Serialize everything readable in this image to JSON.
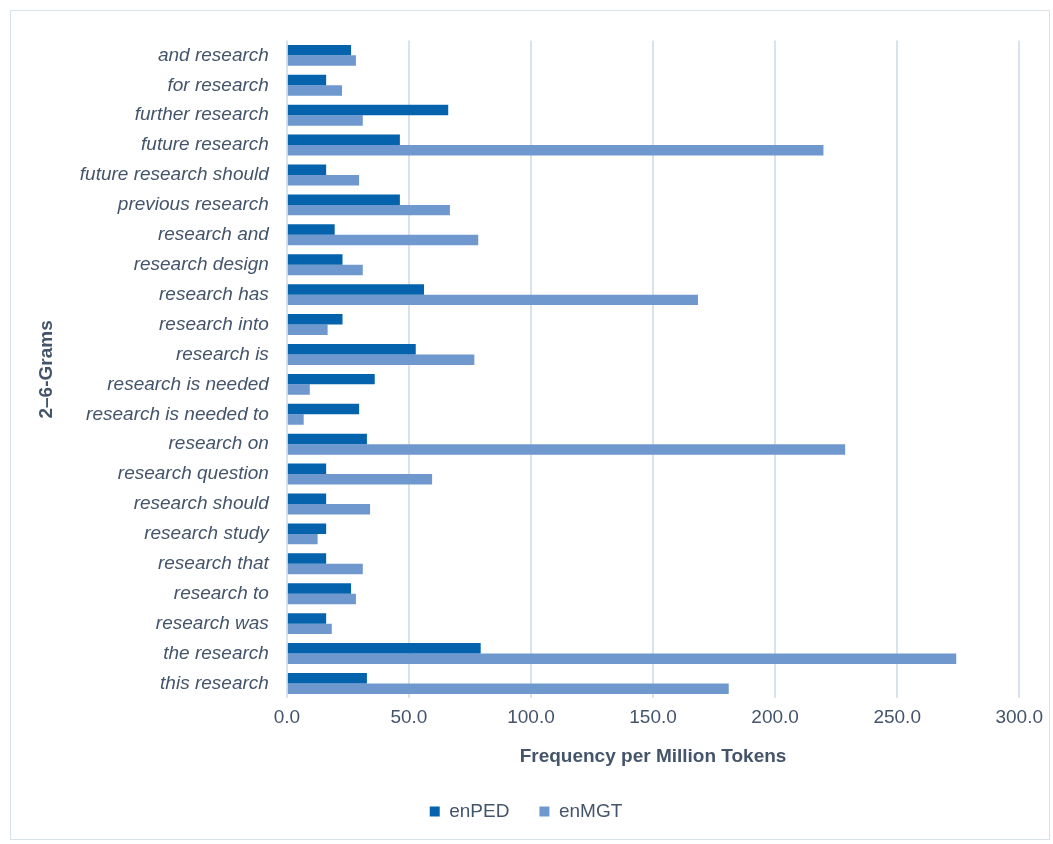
{
  "chart_data": {
    "type": "bar",
    "orientation": "horizontal",
    "xlabel": "Frequency per Million Tokens",
    "ylabel": "2–6-Grams",
    "categories": [
      "and research",
      "for research",
      "further research",
      "future research",
      "future research should",
      "previous research",
      "research and",
      "research design",
      "research has",
      "research into",
      "research is",
      "research is needed",
      "research is needed to",
      "research on",
      "research question",
      "research should",
      "research study",
      "research that",
      "research to",
      "research was",
      "the research",
      "this research"
    ],
    "series": [
      {
        "name": "enPED",
        "color": "#0563ad",
        "values": [
          26.3,
          16.1,
          66.1,
          46.3,
          16.1,
          46.3,
          19.6,
          22.8,
          56.2,
          22.8,
          52.8,
          36.0,
          29.6,
          32.8,
          16.1,
          16.1,
          16.1,
          16.1,
          26.3,
          16.1,
          79.4,
          32.8
        ]
      },
      {
        "name": "enMGT",
        "color": "#6f98cf",
        "values": [
          28.3,
          22.6,
          31.1,
          219.8,
          29.6,
          66.8,
          78.4,
          31.1,
          168.4,
          16.7,
          76.8,
          9.4,
          6.9,
          228.7,
          59.5,
          34.1,
          12.6,
          31.1,
          28.3,
          18.4,
          274.2,
          181.0
        ]
      }
    ],
    "xlim": [
      0,
      300
    ],
    "xticks": [
      {
        "value": 0,
        "label": "0.0"
      },
      {
        "value": 50,
        "label": "50.0"
      },
      {
        "value": 100,
        "label": "100.0"
      },
      {
        "value": 150,
        "label": "150.0"
      },
      {
        "value": 200,
        "label": "200.0"
      },
      {
        "value": 250,
        "label": "250.0"
      },
      {
        "value": 300,
        "label": "300.0"
      }
    ],
    "grid": "x",
    "legend": "bottom"
  }
}
